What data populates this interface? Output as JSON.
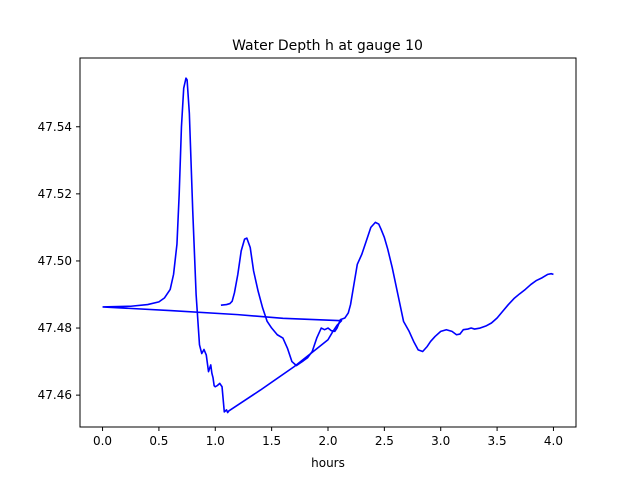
{
  "chart_data": {
    "type": "line",
    "title": "Water Depth h at gauge 10",
    "xlabel": "hours",
    "ylabel": "",
    "xlim": [
      -0.2,
      4.2
    ],
    "ylim": [
      47.4505,
      47.5605
    ],
    "xticks": [
      0.0,
      0.5,
      1.0,
      1.5,
      2.0,
      2.5,
      3.0,
      3.5,
      4.0
    ],
    "xtick_labels": [
      "0.0",
      "0.5",
      "1.0",
      "1.5",
      "2.0",
      "2.5",
      "3.0",
      "3.5",
      "4.0"
    ],
    "yticks": [
      47.46,
      47.48,
      47.5,
      47.52,
      47.54
    ],
    "ytick_labels": [
      "47.46",
      "47.48",
      "47.50",
      "47.52",
      "47.54"
    ],
    "grid": false,
    "series": [
      {
        "color": "#0000ff",
        "x": [
          0.0,
          0.25,
          0.4,
          0.5,
          0.55,
          0.6,
          0.63,
          0.66,
          0.68,
          0.7,
          0.72,
          0.74,
          0.75,
          0.77,
          0.8,
          0.83,
          0.86,
          0.88,
          0.9,
          0.92,
          0.94,
          0.96,
          0.97,
          0.98,
          0.99,
          1.0,
          1.02,
          1.04,
          1.06,
          1.08,
          1.1,
          1.11,
          1.12,
          1.4,
          1.7,
          1.85,
          2.0,
          2.04,
          2.08,
          2.12,
          1.6,
          1.2,
          0.6,
          0.0
        ],
        "y": [
          47.4863,
          47.4865,
          47.487,
          47.4878,
          47.489,
          47.4915,
          47.496,
          47.505,
          47.52,
          47.54,
          47.5515,
          47.5545,
          47.554,
          47.544,
          47.515,
          47.49,
          47.475,
          47.4724,
          47.4736,
          47.472,
          47.467,
          47.469,
          47.4665,
          47.4652,
          47.4628,
          47.4625,
          47.4629,
          47.4635,
          47.4625,
          47.455,
          47.4556,
          47.4548,
          47.4553,
          47.4615,
          47.4685,
          47.4725,
          47.4765,
          47.4788,
          47.4808,
          47.4822,
          47.4829,
          47.484,
          47.4852,
          47.4863
        ]
      },
      {
        "color": "#0000ff",
        "x": [
          1.05,
          1.1,
          1.13,
          1.15,
          1.17,
          1.2,
          1.23,
          1.26,
          1.28,
          1.31,
          1.34,
          1.38,
          1.42,
          1.46,
          1.5,
          1.55,
          1.6,
          1.64,
          1.68,
          1.72,
          1.75,
          1.78,
          1.82,
          1.86,
          1.9,
          1.94,
          1.97,
          2.0,
          2.03,
          2.06,
          2.08,
          2.11,
          2.15,
          2.18,
          2.2,
          2.23,
          2.26,
          2.3,
          2.34,
          2.38,
          2.42,
          2.45,
          2.47,
          2.5,
          2.53,
          2.57,
          2.62,
          2.67,
          2.72,
          2.76,
          2.8,
          2.84,
          2.88,
          2.91,
          2.95,
          3.0,
          3.05,
          3.1,
          3.14,
          3.17,
          3.2,
          3.24,
          3.27,
          3.3,
          3.35,
          3.4,
          3.45,
          3.5,
          3.55,
          3.6,
          3.65,
          3.7,
          3.75,
          3.8,
          3.85,
          3.9,
          3.95,
          3.98,
          4.0
        ],
        "y": [
          47.4868,
          47.487,
          47.4873,
          47.488,
          47.4905,
          47.496,
          47.503,
          47.5065,
          47.5068,
          47.504,
          47.497,
          47.491,
          47.486,
          47.482,
          47.48,
          47.478,
          47.477,
          47.474,
          47.47,
          47.4688,
          47.4695,
          47.4702,
          47.4712,
          47.473,
          47.477,
          47.48,
          47.4795,
          47.48,
          47.4792,
          47.479,
          47.48,
          47.4825,
          47.483,
          47.4845,
          47.487,
          47.493,
          47.499,
          47.502,
          47.506,
          47.51,
          47.5115,
          47.511,
          47.5095,
          47.507,
          47.5035,
          47.498,
          47.49,
          47.482,
          47.479,
          47.476,
          47.4735,
          47.473,
          47.4745,
          47.476,
          47.4775,
          47.479,
          47.4795,
          47.479,
          47.478,
          47.4782,
          47.4795,
          47.4797,
          47.48,
          47.4797,
          47.48,
          47.4806,
          47.4815,
          47.483,
          47.485,
          47.487,
          47.4888,
          47.4902,
          47.4915,
          47.493,
          47.4942,
          47.495,
          47.496,
          47.4962,
          47.496
        ]
      }
    ]
  }
}
